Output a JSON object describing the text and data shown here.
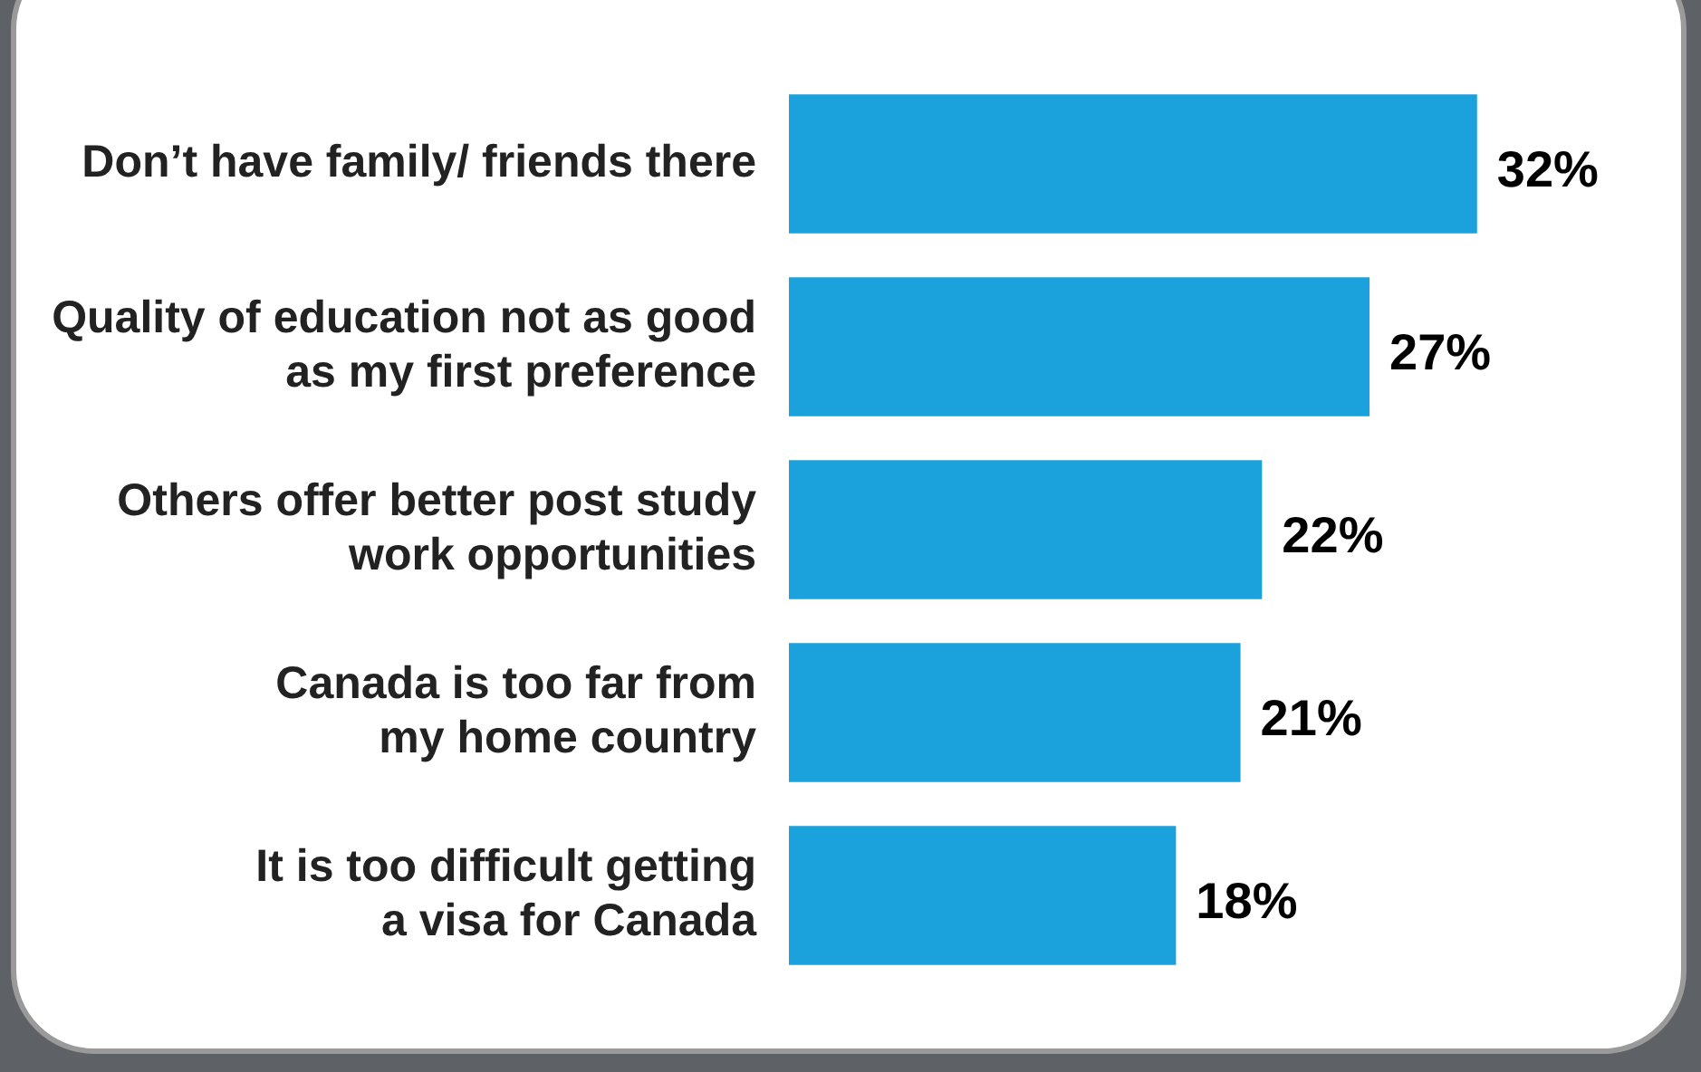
{
  "chart_data": {
    "type": "bar",
    "orientation": "horizontal",
    "categories": [
      "Don’t have family/ friends there",
      "Quality of education not as good\nas my first preference",
      "Others offer better post study\nwork opportunities",
      "Canada is too far from\nmy home country",
      "It is too difficult getting\na visa for Canada"
    ],
    "values": [
      32,
      27,
      22,
      21,
      18
    ],
    "value_labels": [
      "32%",
      "27%",
      "22%",
      "21%",
      "18%"
    ],
    "color": "#1ba1dc",
    "legend": false
  }
}
